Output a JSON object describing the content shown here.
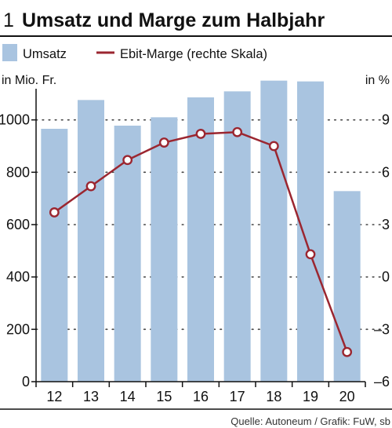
{
  "header": {
    "number": "1",
    "title": "Umsatz und Marge zum Halbjahr"
  },
  "colors": {
    "bar": "#a9c4e0",
    "line": "#9b2630",
    "text": "#111111",
    "grid": "#444444",
    "rule": "#111111"
  },
  "chart_data": {
    "type": "bar",
    "title": "Umsatz und Marge zum Halbjahr",
    "categories": [
      "12",
      "13",
      "14",
      "15",
      "16",
      "17",
      "18",
      "19",
      "20"
    ],
    "series": [
      {
        "name": "Umsatz",
        "type": "bar",
        "axis": "left",
        "values": [
          966,
          1076,
          978,
          1010,
          1086,
          1109,
          1150,
          1147,
          728
        ]
      },
      {
        "name": "Ebit-Marge (rechte Skala)",
        "type": "line",
        "axis": "right",
        "values": [
          3.7,
          5.2,
          6.7,
          7.7,
          8.2,
          8.3,
          7.5,
          1.3,
          -4.3
        ]
      }
    ],
    "y_left": {
      "label": "in Mio. Fr.",
      "range": [
        0,
        1200
      ],
      "ticks": [
        0,
        200,
        400,
        600,
        800,
        1000
      ],
      "tick_labels": [
        "0",
        "200",
        "400",
        "600",
        "800",
        "1000"
      ]
    },
    "y_right": {
      "label": "in %",
      "range": [
        -6,
        12
      ],
      "ticks": [
        -6,
        -3,
        0,
        3,
        6,
        9
      ],
      "tick_labels": [
        "–6",
        "–3",
        "0",
        "3",
        "6",
        "9"
      ]
    },
    "grid": "dotted horizontal",
    "legend": "top-left",
    "source": "Quelle: Autoneum / Grafik: FuW, sb"
  }
}
